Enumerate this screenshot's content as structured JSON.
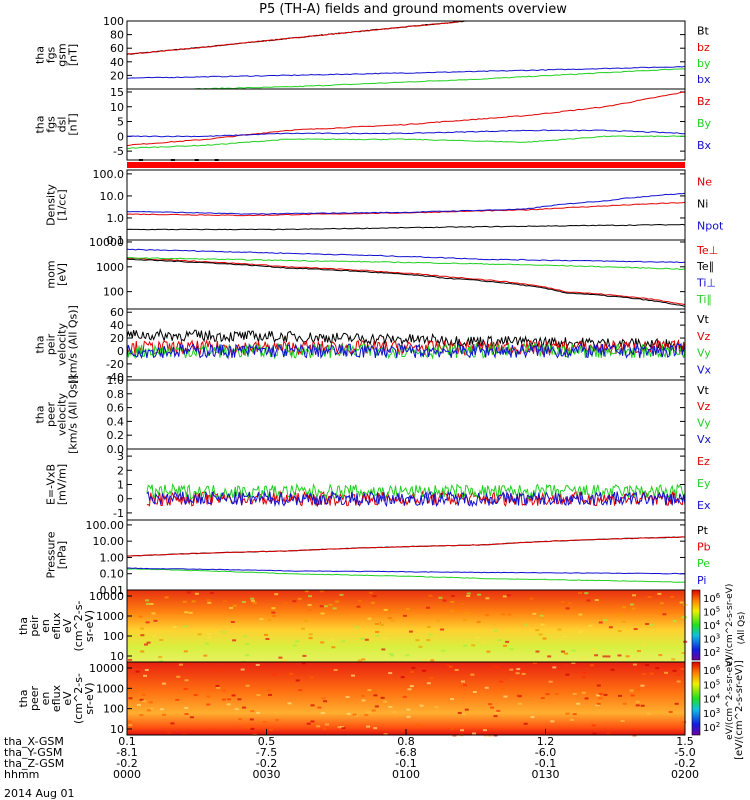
{
  "title": "P5 (TH-A) fields and ground moments overview",
  "date_label": "2014 Aug 01",
  "colors": {
    "black": "#000000",
    "red": "#e00000",
    "green": "#20d020",
    "blue": "#1010d0"
  },
  "xaxis": {
    "rows": [
      {
        "label": "tha_X-GSM",
        "values": [
          "0.1",
          "0.5",
          "0.8",
          "1.2",
          "1.5"
        ]
      },
      {
        "label": "tha_Y-GSM",
        "values": [
          "-8.1",
          "-7.5",
          "-6.8",
          "-6.0",
          "-5.0"
        ]
      },
      {
        "label": "tha_Z-GSM",
        "values": [
          "-0.2",
          "-0.2",
          "-0.1",
          "-0.1",
          "-0.2"
        ]
      },
      {
        "label": "hhmm",
        "values": [
          "0000",
          "0030",
          "0100",
          "0130",
          "0200"
        ]
      }
    ]
  },
  "flag_bar_color": "#ff0000",
  "colorbar": {
    "top_ticks": [
      "10^6",
      "10^5",
      "10^4",
      "10^3",
      "10^2"
    ],
    "bottom_ticks": [
      "10^6",
      "10^5",
      "10^4",
      "10^3",
      "10^2"
    ],
    "top_label": "eV/(cm^2-s-sr-eV)",
    "bottom_label": "eV/(cm^2-s-sr-eV)",
    "units_label": "[eV/(cm^2-s-sr-eV)]",
    "side_label": "(All Qs)"
  },
  "chart_data": [
    {
      "id": "fgs",
      "type": "line",
      "ylabel": [
        "tha",
        "fgs",
        "gsm",
        "[nT]"
      ],
      "yticks": [
        "20",
        "40",
        "60",
        "80",
        "100"
      ],
      "ylim": [
        0,
        100
      ],
      "series": [
        {
          "name": "Bt",
          "color": "black",
          "x": [
            0.1,
            0.3,
            0.6,
            0.9,
            0.95
          ],
          "y": [
            51,
            62,
            80,
            97,
            100
          ]
        },
        {
          "name": "bz",
          "color": "red",
          "x": [
            0.1,
            0.3,
            0.6,
            0.9,
            0.95
          ],
          "y": [
            51,
            62,
            80,
            97,
            100
          ]
        },
        {
          "name": "by",
          "color": "green",
          "x": [
            0.1,
            0.5,
            1.0,
            1.5
          ],
          "y": [
            -2,
            3,
            15,
            30
          ]
        },
        {
          "name": "bx",
          "color": "blue",
          "x": [
            0.1,
            0.5,
            1.0,
            1.5
          ],
          "y": [
            16,
            20,
            26,
            33
          ]
        }
      ]
    },
    {
      "id": "fgs_dsl",
      "type": "line",
      "ylabel": [
        "tha",
        "fgs",
        "dsl",
        "[nT]"
      ],
      "yticks": [
        "-5",
        "0",
        "5",
        "10",
        "15"
      ],
      "ylim": [
        -8,
        16
      ],
      "series": [
        {
          "name": "Bz",
          "color": "red",
          "x": [
            0.1,
            0.3,
            0.5,
            0.8,
            1.1,
            1.3,
            1.5
          ],
          "y": [
            -3,
            -1,
            2,
            4,
            7,
            10,
            15
          ]
        },
        {
          "name": "By",
          "color": "green",
          "x": [
            0.1,
            0.3,
            0.5,
            0.8,
            1.1,
            1.3,
            1.5
          ],
          "y": [
            -4,
            -3,
            -1,
            -1,
            -2,
            0,
            0
          ]
        },
        {
          "name": "Bx",
          "color": "blue",
          "x": [
            0.1,
            0.3,
            0.5,
            0.8,
            1.1,
            1.3,
            1.5
          ],
          "y": [
            0,
            0,
            1,
            1,
            2,
            2,
            1
          ]
        }
      ]
    },
    {
      "id": "density",
      "type": "line",
      "ylabel": [
        "Density",
        "[1/cc]"
      ],
      "yticks": [
        "0.1",
        "1.0",
        "10.0",
        "100.0"
      ],
      "ylim": [
        0.1,
        150
      ],
      "log": true,
      "series": [
        {
          "name": "Ne",
          "color": "red",
          "x": [
            0.1,
            0.4,
            0.8,
            1.1,
            1.3,
            1.5
          ],
          "y": [
            1.5,
            1.3,
            1.7,
            2.3,
            3.5,
            5
          ]
        },
        {
          "name": "Ni",
          "color": "black",
          "x": [
            0.1,
            0.5,
            1.0,
            1.5
          ],
          "y": [
            0.3,
            0.3,
            0.4,
            0.5
          ]
        },
        {
          "name": "Npot",
          "color": "blue",
          "x": [
            0.1,
            0.4,
            0.8,
            1.1,
            1.3,
            1.5
          ],
          "y": [
            2,
            1.5,
            1.8,
            2.5,
            6,
            13
          ]
        }
      ]
    },
    {
      "id": "temp",
      "type": "line",
      "ylabel": [
        "mom",
        "[eV]"
      ],
      "yticks": [
        "100",
        "1000",
        "10000"
      ],
      "ylim": [
        20,
        12000
      ],
      "log": true,
      "series": [
        {
          "name": "Te⊥",
          "color": "red",
          "x": [
            0.1,
            0.5,
            0.9,
            1.2,
            1.5
          ],
          "y": [
            2200,
            1000,
            400,
            100,
            30
          ]
        },
        {
          "name": "Te∥",
          "color": "black",
          "x": [
            0.1,
            0.5,
            0.9,
            1.2,
            1.5
          ],
          "y": [
            2000,
            900,
            350,
            90,
            25
          ]
        },
        {
          "name": "Ti⊥",
          "color": "blue",
          "x": [
            0.1,
            0.5,
            1.0,
            1.5
          ],
          "y": [
            5000,
            3500,
            2000,
            1500
          ]
        },
        {
          "name": "Ti∥",
          "color": "green",
          "x": [
            0.1,
            0.5,
            1.0,
            1.5
          ],
          "y": [
            2300,
            1800,
            1300,
            800
          ]
        }
      ]
    },
    {
      "id": "peir_vel",
      "type": "line",
      "ylabel": [
        "tha",
        "peir",
        "velocity",
        "[km/s (All Qs)]"
      ],
      "yticks": [
        "-40",
        "-20",
        "0",
        "20",
        "40",
        "60"
      ],
      "ylim": [
        -45,
        65
      ],
      "series": [
        {
          "name": "Vt",
          "color": "black",
          "noise": true,
          "x": [
            0.1,
            0.5,
            1.0,
            1.5
          ],
          "y": [
            25,
            22,
            15,
            10
          ]
        },
        {
          "name": "Vz",
          "color": "red",
          "noise": true,
          "x": [
            0.1,
            1.5
          ],
          "y": [
            5,
            5
          ]
        },
        {
          "name": "Vy",
          "color": "green",
          "noise": true,
          "x": [
            0.1,
            1.5
          ],
          "y": [
            0,
            0
          ]
        },
        {
          "name": "Vx",
          "color": "blue",
          "noise": true,
          "x": [
            0.1,
            1.5
          ],
          "y": [
            0,
            0
          ]
        }
      ]
    },
    {
      "id": "peer_vel",
      "type": "line",
      "ylabel": [
        "tha",
        "peer",
        "velocity",
        "[km/s (All Qs)]"
      ],
      "yticks": [
        "0.0",
        "0.2",
        "0.4",
        "0.6",
        "0.8",
        "1.0"
      ],
      "ylim": [
        0,
        1
      ],
      "series": [
        {
          "name": "Vt",
          "color": "black",
          "x": [],
          "y": []
        },
        {
          "name": "Vz",
          "color": "red",
          "x": [],
          "y": []
        },
        {
          "name": "Vy",
          "color": "green",
          "x": [],
          "y": []
        },
        {
          "name": "Vx",
          "color": "blue",
          "x": [],
          "y": []
        }
      ]
    },
    {
      "id": "efield",
      "type": "line",
      "ylabel": [
        "E=-VxB",
        "[mV/m]"
      ],
      "yticks": [
        "-1",
        "0",
        "1",
        "2",
        "3"
      ],
      "ylim": [
        -1.5,
        3.5
      ],
      "series": [
        {
          "name": "Ez",
          "color": "red",
          "noise": true,
          "x": [
            0.15,
            1.5
          ],
          "y": [
            0,
            0
          ]
        },
        {
          "name": "Ey",
          "color": "green",
          "noise": true,
          "x": [
            0.15,
            1.5
          ],
          "y": [
            0.5,
            0.5
          ]
        },
        {
          "name": "Ex",
          "color": "blue",
          "noise": true,
          "x": [
            0.15,
            1.5
          ],
          "y": [
            0,
            0
          ]
        }
      ]
    },
    {
      "id": "pressure",
      "type": "line",
      "ylabel": [
        "Pressure",
        "[nPa]"
      ],
      "yticks": [
        "0.01",
        "0.10",
        "1.00",
        "10.00",
        "100.00"
      ],
      "ylim": [
        0.01,
        200
      ],
      "log": true,
      "series": [
        {
          "name": "Pt",
          "color": "black",
          "x": [
            0.1,
            0.5,
            1.0,
            1.5
          ],
          "y": [
            1.2,
            2.5,
            6,
            18
          ]
        },
        {
          "name": "Pb",
          "color": "red",
          "x": [
            0.1,
            0.5,
            1.0,
            1.5
          ],
          "y": [
            1.2,
            2.5,
            6,
            18
          ]
        },
        {
          "name": "Pe",
          "color": "green",
          "x": [
            0.1,
            0.5,
            1.0,
            1.5
          ],
          "y": [
            0.2,
            0.1,
            0.05,
            0.03
          ]
        },
        {
          "name": "Pi",
          "color": "blue",
          "x": [
            0.1,
            0.5,
            1.0,
            1.5
          ],
          "y": [
            0.22,
            0.15,
            0.12,
            0.1
          ]
        }
      ]
    },
    {
      "id": "peir_spec",
      "type": "heatmap",
      "ylabel": [
        "tha",
        "peir",
        "en",
        "eflux",
        "eV",
        "(cm^2-s-",
        "sr-eV)"
      ],
      "yticks": [
        "10",
        "100",
        "1000",
        "10000"
      ]
    },
    {
      "id": "peer_spec",
      "type": "heatmap",
      "ylabel": [
        "tha",
        "peer",
        "en",
        "eflux",
        "eV",
        "(cm^2-s-",
        "sr-eV)"
      ],
      "yticks": [
        "10",
        "100",
        "1000",
        "10000"
      ]
    }
  ]
}
